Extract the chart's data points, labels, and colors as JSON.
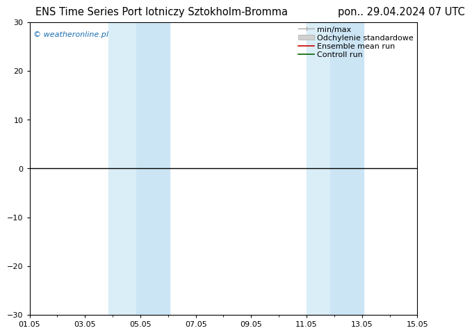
{
  "title_left": "ENS Time Series Port lotniczy Sztokholm-Bromma",
  "title_right": "pon.. 29.04.2024 07 UTC",
  "ylim": [
    -30,
    30
  ],
  "yticks": [
    -30,
    -20,
    -10,
    0,
    10,
    20,
    30
  ],
  "xtick_labels": [
    "01.05",
    "03.05",
    "05.05",
    "07.05",
    "09.05",
    "11.05",
    "13.05",
    "15.05"
  ],
  "xtick_positions": [
    1,
    3,
    5,
    7,
    9,
    11,
    13,
    15
  ],
  "shaded_regions": [
    {
      "x_start": 3.85,
      "x_end": 4.85,
      "color": "#ddeef8"
    },
    {
      "x_start": 4.85,
      "x_end": 6.0,
      "color": "#d0e8f5"
    },
    {
      "x_start": 11.0,
      "x_end": 11.85,
      "color": "#ddeef8"
    },
    {
      "x_start": 11.85,
      "x_end": 13.0,
      "color": "#d0e8f5"
    }
  ],
  "zero_line_color": "#000000",
  "background_color": "#ffffff",
  "plot_bg_color": "#ffffff",
  "watermark": "© weatheronline.pl",
  "watermark_color": "#1a6fb0",
  "title_fontsize": 10.5,
  "tick_fontsize": 8,
  "legend_fontsize": 8,
  "x_start_day": 1,
  "x_end_day": 15,
  "legend_labels": [
    "min/max",
    "Odchylenie standardowe",
    "Ensemble mean run",
    "Controll run"
  ],
  "legend_colors": [
    "#aaaaaa",
    "#cccccc",
    "#cc0000",
    "#006600"
  ]
}
